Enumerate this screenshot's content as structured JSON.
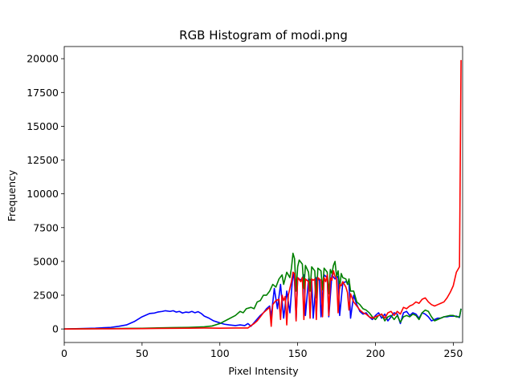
{
  "chart_data": {
    "type": "line",
    "title": "RGB Histogram of modi.png",
    "xlabel": "Pixel Intensity",
    "ylabel": "Frequency",
    "xlim": [
      0,
      256
    ],
    "ylim": [
      -1000,
      20900
    ],
    "xticks": [
      0,
      50,
      100,
      150,
      200,
      250
    ],
    "yticks": [
      0,
      2500,
      5000,
      7500,
      10000,
      12500,
      15000,
      17500,
      20000
    ],
    "grid": false,
    "legend": "none",
    "series": [
      {
        "color": "#0000ff",
        "points": [
          [
            0,
            0
          ],
          [
            10,
            30
          ],
          [
            20,
            60
          ],
          [
            30,
            120
          ],
          [
            35,
            200
          ],
          [
            40,
            300
          ],
          [
            45,
            550
          ],
          [
            50,
            900
          ],
          [
            55,
            1150
          ],
          [
            58,
            1180
          ],
          [
            60,
            1250
          ],
          [
            63,
            1300
          ],
          [
            65,
            1350
          ],
          [
            68,
            1300
          ],
          [
            70,
            1350
          ],
          [
            72,
            1250
          ],
          [
            74,
            1300
          ],
          [
            76,
            1180
          ],
          [
            78,
            1250
          ],
          [
            80,
            1220
          ],
          [
            82,
            1300
          ],
          [
            84,
            1200
          ],
          [
            86,
            1280
          ],
          [
            88,
            1150
          ],
          [
            90,
            950
          ],
          [
            93,
            800
          ],
          [
            96,
            600
          ],
          [
            100,
            450
          ],
          [
            103,
            350
          ],
          [
            106,
            300
          ],
          [
            110,
            250
          ],
          [
            113,
            300
          ],
          [
            116,
            250
          ],
          [
            118,
            400
          ],
          [
            120,
            200
          ],
          [
            123,
            600
          ],
          [
            126,
            1000
          ],
          [
            128,
            1200
          ],
          [
            130,
            1500
          ],
          [
            132,
            1700
          ],
          [
            133,
            900
          ],
          [
            135,
            3000
          ],
          [
            137,
            1500
          ],
          [
            139,
            3300
          ],
          [
            141,
            800
          ],
          [
            143,
            2800
          ],
          [
            145,
            1200
          ],
          [
            147,
            4200
          ],
          [
            148,
            3500
          ],
          [
            149,
            700
          ],
          [
            150,
            3800
          ],
          [
            152,
            3600
          ],
          [
            154,
            4000
          ],
          [
            155,
            1000
          ],
          [
            157,
            3700
          ],
          [
            159,
            3600
          ],
          [
            160,
            800
          ],
          [
            162,
            3800
          ],
          [
            164,
            3600
          ],
          [
            165,
            900
          ],
          [
            167,
            4000
          ],
          [
            169,
            3800
          ],
          [
            170,
            900
          ],
          [
            172,
            4000
          ],
          [
            174,
            3700
          ],
          [
            176,
            3900
          ],
          [
            177,
            1000
          ],
          [
            179,
            3400
          ],
          [
            181,
            3500
          ],
          [
            183,
            3300
          ],
          [
            184,
            800
          ],
          [
            186,
            2500
          ],
          [
            188,
            1800
          ],
          [
            190,
            1300
          ],
          [
            192,
            1100
          ],
          [
            194,
            1200
          ],
          [
            196,
            900
          ],
          [
            198,
            700
          ],
          [
            200,
            1000
          ],
          [
            202,
            1200
          ],
          [
            204,
            800
          ],
          [
            206,
            1100
          ],
          [
            208,
            600
          ],
          [
            210,
            900
          ],
          [
            212,
            1200
          ],
          [
            214,
            1100
          ],
          [
            216,
            400
          ],
          [
            218,
            1200
          ],
          [
            220,
            1300
          ],
          [
            222,
            1000
          ],
          [
            224,
            1200
          ],
          [
            226,
            1100
          ],
          [
            228,
            800
          ],
          [
            230,
            1200
          ],
          [
            232,
            1100
          ],
          [
            234,
            900
          ],
          [
            236,
            600
          ],
          [
            238,
            700
          ],
          [
            240,
            800
          ],
          [
            242,
            800
          ],
          [
            244,
            900
          ],
          [
            246,
            900
          ],
          [
            248,
            950
          ],
          [
            250,
            950
          ],
          [
            252,
            950
          ],
          [
            254,
            850
          ],
          [
            255,
            1500
          ]
        ]
      },
      {
        "color": "#008000",
        "points": [
          [
            0,
            0
          ],
          [
            10,
            10
          ],
          [
            20,
            20
          ],
          [
            30,
            30
          ],
          [
            40,
            40
          ],
          [
            50,
            50
          ],
          [
            60,
            80
          ],
          [
            70,
            100
          ],
          [
            80,
            120
          ],
          [
            90,
            160
          ],
          [
            95,
            220
          ],
          [
            100,
            400
          ],
          [
            105,
            700
          ],
          [
            110,
            1000
          ],
          [
            113,
            1300
          ],
          [
            115,
            1200
          ],
          [
            117,
            1500
          ],
          [
            120,
            1600
          ],
          [
            122,
            1500
          ],
          [
            124,
            2000
          ],
          [
            126,
            2100
          ],
          [
            128,
            2500
          ],
          [
            130,
            2500
          ],
          [
            132,
            2800
          ],
          [
            134,
            3300
          ],
          [
            136,
            3100
          ],
          [
            138,
            3700
          ],
          [
            140,
            4000
          ],
          [
            141,
            3300
          ],
          [
            143,
            4200
          ],
          [
            145,
            3800
          ],
          [
            146,
            4500
          ],
          [
            147,
            5600
          ],
          [
            148,
            5200
          ],
          [
            149,
            2800
          ],
          [
            150,
            4600
          ],
          [
            151,
            5100
          ],
          [
            153,
            4800
          ],
          [
            154,
            3000
          ],
          [
            155,
            4700
          ],
          [
            157,
            4200
          ],
          [
            158,
            2800
          ],
          [
            159,
            4600
          ],
          [
            161,
            4300
          ],
          [
            162,
            2300
          ],
          [
            163,
            4500
          ],
          [
            165,
            4300
          ],
          [
            166,
            2900
          ],
          [
            167,
            4500
          ],
          [
            169,
            4200
          ],
          [
            170,
            2600
          ],
          [
            171,
            4400
          ],
          [
            172,
            4100
          ],
          [
            173,
            4700
          ],
          [
            174,
            5000
          ],
          [
            175,
            3900
          ],
          [
            176,
            4300
          ],
          [
            177,
            3000
          ],
          [
            178,
            4100
          ],
          [
            179,
            3800
          ],
          [
            181,
            3700
          ],
          [
            182,
            3300
          ],
          [
            183,
            3700
          ],
          [
            184,
            2800
          ],
          [
            186,
            2800
          ],
          [
            188,
            2000
          ],
          [
            190,
            1800
          ],
          [
            192,
            1500
          ],
          [
            194,
            1400
          ],
          [
            196,
            1200
          ],
          [
            198,
            900
          ],
          [
            200,
            700
          ],
          [
            202,
            1000
          ],
          [
            204,
            1100
          ],
          [
            206,
            600
          ],
          [
            208,
            900
          ],
          [
            210,
            1000
          ],
          [
            212,
            700
          ],
          [
            214,
            1000
          ],
          [
            216,
            500
          ],
          [
            218,
            900
          ],
          [
            220,
            1000
          ],
          [
            222,
            900
          ],
          [
            224,
            1100
          ],
          [
            226,
            1000
          ],
          [
            228,
            700
          ],
          [
            230,
            1200
          ],
          [
            232,
            1400
          ],
          [
            234,
            1300
          ],
          [
            236,
            900
          ],
          [
            238,
            600
          ],
          [
            240,
            700
          ],
          [
            242,
            800
          ],
          [
            244,
            900
          ],
          [
            246,
            950
          ],
          [
            248,
            1000
          ],
          [
            250,
            1000
          ],
          [
            252,
            900
          ],
          [
            254,
            900
          ],
          [
            255,
            1500
          ]
        ]
      },
      {
        "color": "#ff0000",
        "points": [
          [
            0,
            0
          ],
          [
            10,
            5
          ],
          [
            20,
            10
          ],
          [
            30,
            15
          ],
          [
            40,
            20
          ],
          [
            50,
            30
          ],
          [
            60,
            40
          ],
          [
            70,
            50
          ],
          [
            80,
            60
          ],
          [
            90,
            70
          ],
          [
            100,
            60
          ],
          [
            110,
            70
          ],
          [
            118,
            70
          ],
          [
            120,
            250
          ],
          [
            122,
            400
          ],
          [
            124,
            600
          ],
          [
            126,
            900
          ],
          [
            128,
            1200
          ],
          [
            130,
            1400
          ],
          [
            132,
            1600
          ],
          [
            133,
            200
          ],
          [
            134,
            1800
          ],
          [
            136,
            2100
          ],
          [
            138,
            2200
          ],
          [
            139,
            700
          ],
          [
            140,
            2500
          ],
          [
            141,
            2100
          ],
          [
            142,
            2400
          ],
          [
            143,
            300
          ],
          [
            144,
            2500
          ],
          [
            145,
            3000
          ],
          [
            146,
            3500
          ],
          [
            147,
            4200
          ],
          [
            148,
            4100
          ],
          [
            149,
            600
          ],
          [
            150,
            3800
          ],
          [
            152,
            3500
          ],
          [
            153,
            3800
          ],
          [
            154,
            700
          ],
          [
            155,
            3700
          ],
          [
            156,
            3600
          ],
          [
            157,
            3500
          ],
          [
            158,
            800
          ],
          [
            159,
            3700
          ],
          [
            160,
            3600
          ],
          [
            161,
            3700
          ],
          [
            162,
            700
          ],
          [
            163,
            3800
          ],
          [
            164,
            3700
          ],
          [
            165,
            3600
          ],
          [
            166,
            900
          ],
          [
            167,
            3800
          ],
          [
            168,
            3500
          ],
          [
            169,
            4000
          ],
          [
            170,
            1000
          ],
          [
            171,
            3800
          ],
          [
            172,
            3600
          ],
          [
            173,
            4300
          ],
          [
            174,
            3900
          ],
          [
            175,
            3700
          ],
          [
            176,
            1200
          ],
          [
            177,
            3300
          ],
          [
            178,
            3200
          ],
          [
            179,
            3500
          ],
          [
            180,
            3300
          ],
          [
            181,
            3100
          ],
          [
            182,
            2700
          ],
          [
            183,
            1400
          ],
          [
            184,
            2600
          ],
          [
            185,
            2300
          ],
          [
            186,
            2000
          ],
          [
            188,
            1700
          ],
          [
            190,
            1400
          ],
          [
            192,
            1200
          ],
          [
            194,
            1100
          ],
          [
            196,
            900
          ],
          [
            198,
            800
          ],
          [
            200,
            900
          ],
          [
            202,
            1000
          ],
          [
            204,
            1100
          ],
          [
            206,
            800
          ],
          [
            208,
            1200
          ],
          [
            210,
            1300
          ],
          [
            212,
            1000
          ],
          [
            214,
            1300
          ],
          [
            216,
            1100
          ],
          [
            218,
            1600
          ],
          [
            220,
            1500
          ],
          [
            222,
            1700
          ],
          [
            224,
            1800
          ],
          [
            226,
            2000
          ],
          [
            228,
            1900
          ],
          [
            230,
            2200
          ],
          [
            232,
            2300
          ],
          [
            234,
            2000
          ],
          [
            236,
            1800
          ],
          [
            238,
            1700
          ],
          [
            240,
            1800
          ],
          [
            242,
            1900
          ],
          [
            244,
            2000
          ],
          [
            246,
            2300
          ],
          [
            248,
            2700
          ],
          [
            250,
            3200
          ],
          [
            252,
            4200
          ],
          [
            254,
            4600
          ],
          [
            255,
            19900
          ]
        ]
      }
    ]
  }
}
